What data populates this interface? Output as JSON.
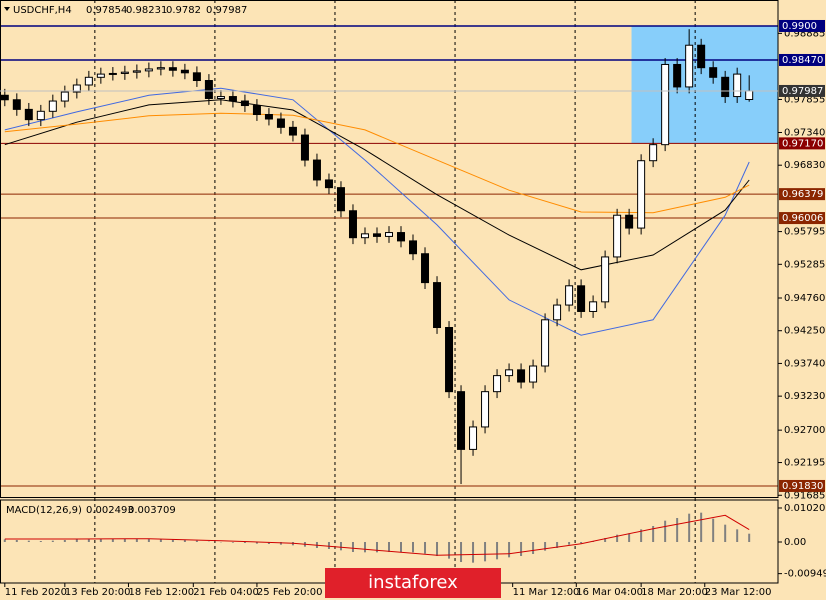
{
  "chart_data": {
    "type": "candlestick",
    "title": "USDCHF,H4",
    "open": [
      0.9792,
      0.9785,
      0.977,
      0.9754,
      0.9767,
      0.9783,
      0.9797,
      0.9808,
      0.982,
      0.9825,
      0.9826,
      0.9828,
      0.983,
      0.9833,
      0.9835,
      0.9831,
      0.9827,
      0.9815,
      0.9787,
      0.979,
      0.9783,
      0.9776,
      0.9762,
      0.9755,
      0.9742,
      0.973,
      0.9691,
      0.966,
      0.9648,
      0.9612,
      0.957,
      0.9576,
      0.9572,
      0.9578,
      0.9565,
      0.9545,
      0.95,
      0.943,
      0.933,
      0.924,
      0.9275,
      0.933,
      0.9355,
      0.9364,
      0.9345,
      0.937,
      0.9442,
      0.9465,
      0.9495,
      0.9455,
      0.947,
      0.954,
      0.9605,
      0.9585,
      0.969,
      0.9715,
      0.984,
      0.9805,
      0.987,
      0.9835,
      0.982,
      0.979,
      0.97854
    ],
    "high": [
      0.9802,
      0.9795,
      0.978,
      0.9777,
      0.9793,
      0.9807,
      0.9818,
      0.983,
      0.9835,
      0.9836,
      0.9838,
      0.984,
      0.9843,
      0.9845,
      0.9845,
      0.9841,
      0.9837,
      0.9825,
      0.98,
      0.98,
      0.9793,
      0.9786,
      0.9772,
      0.9765,
      0.9752,
      0.974,
      0.9701,
      0.967,
      0.9658,
      0.9622,
      0.9586,
      0.9586,
      0.9588,
      0.9588,
      0.9575,
      0.9555,
      0.951,
      0.944,
      0.934,
      0.9285,
      0.934,
      0.9365,
      0.9374,
      0.9374,
      0.938,
      0.9452,
      0.9475,
      0.9505,
      0.9505,
      0.948,
      0.955,
      0.9615,
      0.9615,
      0.97,
      0.9725,
      0.985,
      0.985,
      0.9895,
      0.988,
      0.9845,
      0.983,
      0.9835,
      0.98231
    ],
    "low": [
      0.9775,
      0.976,
      0.9744,
      0.9744,
      0.9757,
      0.9773,
      0.9787,
      0.9798,
      0.981,
      0.9815,
      0.9816,
      0.9818,
      0.982,
      0.9823,
      0.9821,
      0.9817,
      0.9805,
      0.9777,
      0.9777,
      0.9773,
      0.9766,
      0.9752,
      0.9745,
      0.9732,
      0.972,
      0.9681,
      0.965,
      0.9638,
      0.9602,
      0.956,
      0.956,
      0.9562,
      0.9562,
      0.9555,
      0.9535,
      0.949,
      0.942,
      0.932,
      0.9186,
      0.923,
      0.9265,
      0.932,
      0.9345,
      0.9335,
      0.9335,
      0.936,
      0.9432,
      0.9455,
      0.9445,
      0.9445,
      0.946,
      0.953,
      0.9575,
      0.9575,
      0.968,
      0.9705,
      0.9795,
      0.9795,
      0.9825,
      0.981,
      0.978,
      0.978,
      0.9782
    ],
    "close": [
      0.9785,
      0.977,
      0.9754,
      0.9767,
      0.9783,
      0.9797,
      0.9808,
      0.982,
      0.9825,
      0.9826,
      0.9828,
      0.983,
      0.9833,
      0.9835,
      0.9831,
      0.9827,
      0.9815,
      0.9787,
      0.979,
      0.9783,
      0.9776,
      0.9762,
      0.9755,
      0.9742,
      0.973,
      0.9691,
      0.966,
      0.9648,
      0.9612,
      0.957,
      0.9576,
      0.9572,
      0.9578,
      0.9565,
      0.9545,
      0.95,
      0.943,
      0.933,
      0.924,
      0.9275,
      0.933,
      0.9355,
      0.9364,
      0.9345,
      0.937,
      0.9442,
      0.9465,
      0.9495,
      0.9455,
      0.947,
      0.954,
      0.9605,
      0.9585,
      0.969,
      0.9715,
      0.984,
      0.9805,
      0.987,
      0.9835,
      0.982,
      0.979,
      0.9825,
      0.97987
    ],
    "xlim": [
      -0.4,
      64.4
    ],
    "ylim": [
      0.91658,
      0.99405
    ],
    "yticks": [
      0.98885,
      0.97855,
      {
        "value": 0.9734,
        "label": "0.97340"
      },
      {
        "value": 0.9683,
        "label": "0.96830"
      },
      0.95795,
      0.95285,
      {
        "value": 0.9476,
        "label": "0.94760"
      },
      {
        "value": 0.9425,
        "label": "0.94250"
      },
      {
        "value": 0.9374,
        "label": "0.93740"
      },
      {
        "value": 0.9323,
        "label": "0.93230"
      },
      {
        "value": 0.927,
        "label": "0.92700"
      },
      0.92195,
      0.91685
    ],
    "xticks": [
      {
        "value": 0,
        "label": "11 Feb 2020"
      },
      {
        "value": 5,
        "label": "13 Feb 20:00"
      },
      {
        "value": 10.3,
        "label": "18 Feb 12:00"
      },
      {
        "value": 15.7,
        "label": "21 Feb 04:00"
      },
      {
        "value": 21,
        "label": "25 Feb 20:00"
      },
      {
        "value": 42.3,
        "label": "11 Mar 12:00"
      },
      {
        "value": 47.6,
        "label": "16 Mar 04:00"
      },
      {
        "value": 53,
        "label": "18 Mar 20:00"
      },
      {
        "value": 58.3,
        "label": "23 Mar 12:00"
      }
    ],
    "separators": [
      7.5,
      17.5,
      27.5,
      37.5,
      47.5,
      57.5
    ],
    "zone": {
      "x": [
        52.2,
        64.4
      ],
      "y": [
        0.9717,
        0.99
      ],
      "color": "#87cefa"
    },
    "levels": [
      {
        "value": 0.99,
        "label": "0.9900",
        "color": "#00007f"
      },
      {
        "value": 0.9847,
        "label": "0.98470",
        "color": "#00007f"
      },
      {
        "value": 0.9717,
        "label": "0.97170",
        "color": "#8b0000"
      },
      {
        "value": 0.96379,
        "label": "0.96379",
        "color": "#8b2500"
      },
      {
        "value": 0.96006,
        "label": "0.96006",
        "color": "#8b2500"
      },
      {
        "value": 0.9183,
        "label": "0.91830",
        "color": "#8b2500"
      }
    ],
    "moving_averages": [
      {
        "color": "#4169e1",
        "x": [
          0,
          6,
          12,
          18,
          24,
          30,
          36,
          42,
          48,
          54,
          60,
          62
        ],
        "values": [
          0.9738,
          0.9766,
          0.9792,
          0.9803,
          0.9785,
          0.9691,
          0.959,
          0.9473,
          0.9418,
          0.9442,
          0.9605,
          0.9688
        ]
      },
      {
        "color": "#000000",
        "x": [
          0,
          6,
          12,
          18,
          24,
          30,
          36,
          42,
          48,
          54,
          60,
          62
        ],
        "values": [
          0.9715,
          0.975,
          0.9777,
          0.9785,
          0.9769,
          0.9707,
          0.9637,
          0.9574,
          0.952,
          0.9543,
          0.9613,
          0.966
        ]
      },
      {
        "color": "#ff8c00",
        "x": [
          0,
          6,
          12,
          18,
          24,
          30,
          36,
          42,
          48,
          54,
          60,
          62
        ],
        "values": [
          0.9735,
          0.9747,
          0.976,
          0.9764,
          0.9761,
          0.9738,
          0.9691,
          0.9644,
          0.961,
          0.9609,
          0.9633,
          0.9652
        ]
      }
    ],
    "macd": {
      "title": "MACD(12,26,9)",
      "histogram": [
        0.0008,
        0.0006,
        0.0004,
        0.0003,
        0.0004,
        0.0006,
        0.0008,
        0.0009,
        0.001,
        0.001,
        0.001,
        0.0009,
        0.0009,
        0.0008,
        0.0007,
        0.0006,
        0.0004,
        0.0001,
        -0.0001,
        -0.0002,
        -0.0003,
        -0.0005,
        -0.0006,
        -0.0008,
        -0.001,
        -0.0014,
        -0.0018,
        -0.0021,
        -0.0025,
        -0.003,
        -0.0031,
        -0.0031,
        -0.003,
        -0.003,
        -0.0031,
        -0.0035,
        -0.0042,
        -0.005,
        -0.006,
        -0.0062,
        -0.0058,
        -0.0052,
        -0.0046,
        -0.0042,
        -0.0036,
        -0.0026,
        -0.0018,
        -0.0008,
        -0.0004,
        0.0002,
        0.0012,
        0.0022,
        0.0026,
        0.0038,
        0.0048,
        0.0064,
        0.0072,
        0.0085,
        0.0088,
        0.007,
        0.0052,
        0.0038,
        0.002493
      ],
      "histogram_color": "#808080",
      "signal": {
        "color": "#d00000",
        "x": [
          0,
          6,
          12,
          18,
          24,
          30,
          36,
          42,
          48,
          54,
          60,
          62
        ],
        "values": [
          0.0009,
          0.0009,
          0.001,
          0.0004,
          -0.0004,
          -0.0022,
          -0.004,
          -0.0035,
          -0.0005,
          0.004,
          0.008,
          0.003709
        ]
      },
      "ylim": [
        -0.0123,
        0.0126
      ],
      "yticks": [
        0.010205,
        {
          "value": 0,
          "label": "0.00"
        },
        -0.00949
      ]
    },
    "watermark": "instaforex"
  }
}
